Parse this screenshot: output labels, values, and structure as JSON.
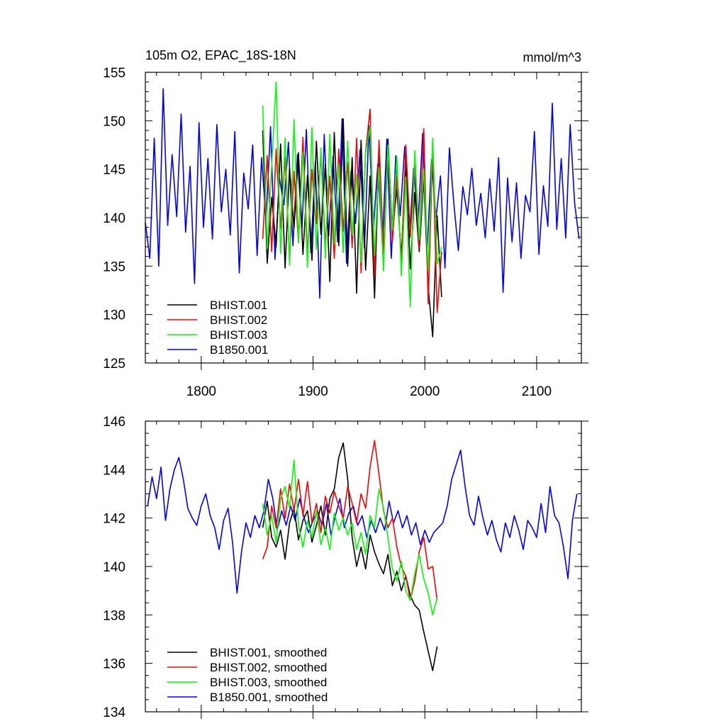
{
  "chart_data": [
    {
      "type": "line",
      "title": "105m O2, EPAC_18S-18N",
      "units": "mmol/m^3",
      "xlim": [
        1750,
        2140
      ],
      "ylim": [
        125,
        155
      ],
      "x_ticks": [
        1800,
        1900,
        2000,
        2100
      ],
      "x_tick_labels": [
        "1800",
        "1900",
        "2000",
        "2100"
      ],
      "y_ticks": [
        125,
        130,
        135,
        140,
        145,
        150,
        155
      ],
      "y_tick_labels": [
        "125",
        "130",
        "135",
        "140",
        "145",
        "150",
        "155"
      ],
      "legend_position": "bottom-left",
      "series": [
        {
          "name": "B1850.001",
          "color": "#0000ff",
          "x": [
            1750,
            1754,
            1758,
            1762,
            1766,
            1770,
            1774,
            1778,
            1782,
            1786,
            1790,
            1794,
            1798,
            1802,
            1806,
            1810,
            1814,
            1818,
            1822,
            1826,
            1830,
            1834,
            1838,
            1842,
            1846,
            1850,
            1854,
            1858,
            1862,
            1866,
            1870,
            1874,
            1878,
            1882,
            1886,
            1890,
            1894,
            1898,
            1902,
            1906,
            1910,
            1914,
            1918,
            1922,
            1926,
            1930,
            1934,
            1938,
            1942,
            1946,
            1950,
            1954,
            1958,
            1962,
            1966,
            1970,
            1974,
            1978,
            1982,
            1986,
            1990,
            1994,
            1998,
            2002,
            2006,
            2010,
            2014,
            2018,
            2022,
            2026,
            2030,
            2034,
            2038,
            2042,
            2046,
            2050,
            2054,
            2058,
            2062,
            2066,
            2070,
            2074,
            2078,
            2082,
            2086,
            2090,
            2094,
            2098,
            2102,
            2106,
            2110,
            2114,
            2118,
            2122,
            2126,
            2130,
            2134,
            2138
          ],
          "values": [
            139.5,
            135.8,
            148.2,
            135.0,
            153.3,
            139.2,
            146.5,
            140.1,
            150.7,
            138.5,
            145.3,
            133.2,
            149.8,
            139.0,
            146.1,
            137.8,
            149.6,
            140.6,
            145.0,
            138.2,
            148.9,
            134.3,
            144.6,
            140.9,
            147.5,
            136.1,
            146.2,
            139.7,
            149.4,
            135.7,
            144.1,
            141.3,
            147.8,
            137.1,
            146.5,
            138.8,
            149.1,
            136.4,
            145.7,
            131.7,
            148.6,
            138.1,
            146.3,
            137.5,
            150.2,
            135.3,
            144.8,
            139.4,
            147.0,
            136.8,
            149.5,
            138.9,
            145.6,
            137.2,
            148.1,
            135.8,
            146.4,
            140.2,
            147.3,
            137.6,
            145.1,
            139.5,
            148.7,
            136.5,
            146.0,
            140.0,
            144.3,
            134.8,
            147.2,
            141.4,
            136.6,
            143.2,
            140.3,
            145.1,
            139.2,
            142.5,
            137.9,
            144.0,
            138.6,
            146.2,
            132.3,
            144.1,
            137.5,
            143.6,
            135.8,
            142.3,
            140.6,
            148.9,
            136.2,
            143.3,
            139.1,
            151.8,
            138.8,
            146.1,
            137.9,
            149.6,
            141.5,
            137.8
          ]
        },
        {
          "name": "BHIST.001",
          "color": "#000000",
          "x": [
            1855,
            1859,
            1863,
            1867,
            1871,
            1875,
            1879,
            1883,
            1887,
            1891,
            1895,
            1899,
            1903,
            1907,
            1911,
            1915,
            1919,
            1923,
            1927,
            1931,
            1935,
            1939,
            1943,
            1947,
            1951,
            1955,
            1959,
            1963,
            1967,
            1971,
            1975,
            1979,
            1983,
            1987,
            1991,
            1995,
            1999,
            2003,
            2007,
            2011,
            2015
          ],
          "values": [
            149.0,
            135.3,
            142.1,
            137.0,
            147.6,
            134.8,
            145.1,
            138.9,
            146.7,
            136.2,
            144.4,
            135.6,
            147.9,
            138.3,
            145.5,
            133.4,
            148.8,
            137.1,
            150.2,
            135.0,
            146.2,
            132.2,
            148.0,
            134.6,
            144.3,
            131.7,
            146.9,
            136.3,
            148.1,
            138.5,
            143.0,
            136.0,
            145.9,
            134.7,
            142.6,
            136.5,
            144.1,
            132.8,
            127.7,
            140.2,
            131.8
          ]
        },
        {
          "name": "BHIST.002",
          "color": "#ff0000",
          "x": [
            1855,
            1859,
            1863,
            1867,
            1871,
            1875,
            1879,
            1883,
            1887,
            1891,
            1895,
            1899,
            1903,
            1907,
            1911,
            1915,
            1919,
            1923,
            1927,
            1931,
            1935,
            1939,
            1943,
            1947,
            1951,
            1955,
            1959,
            1963,
            1967,
            1971,
            1975,
            1979,
            1983,
            1987,
            1991,
            1995,
            1999,
            2003,
            2007,
            2011,
            2015
          ],
          "values": [
            137.8,
            146.4,
            136.5,
            147.1,
            138.9,
            146.2,
            135.6,
            144.8,
            137.4,
            148.3,
            136.1,
            145.0,
            139.4,
            146.5,
            137.2,
            144.3,
            135.8,
            147.1,
            138.6,
            145.7,
            136.9,
            148.2,
            134.3,
            146.8,
            151.2,
            134.0,
            148.0,
            136.4,
            146.7,
            137.5,
            144.3,
            135.1,
            147.5,
            138.0,
            145.9,
            136.8,
            149.2,
            131.1,
            147.2,
            130.2,
            136.5
          ]
        },
        {
          "name": "BHIST.003",
          "color": "#00ff00",
          "x": [
            1855,
            1859,
            1863,
            1867,
            1871,
            1875,
            1879,
            1883,
            1887,
            1891,
            1895,
            1899,
            1903,
            1907,
            1911,
            1915,
            1919,
            1923,
            1927,
            1931,
            1935,
            1939,
            1943,
            1947,
            1951,
            1955,
            1959,
            1963,
            1967,
            1971,
            1975,
            1979,
            1983,
            1987,
            1991,
            1995,
            1999,
            2003,
            2007,
            2011,
            2015
          ],
          "values": [
            151.6,
            136.8,
            145.4,
            154.0,
            136.3,
            148.2,
            135.1,
            150.1,
            137.4,
            146.8,
            134.9,
            149.3,
            136.7,
            147.2,
            135.8,
            148.6,
            137.3,
            145.6,
            136.4,
            147.9,
            138.2,
            144.5,
            135.4,
            146.7,
            149.4,
            136.1,
            145.2,
            134.5,
            147.5,
            138.7,
            146.3,
            134.0,
            144.2,
            130.8,
            146.9,
            137.7,
            145.0,
            134.5,
            148.2,
            135.2,
            137.0
          ]
        }
      ]
    },
    {
      "type": "line",
      "title": "",
      "units": "",
      "xlim": [
        1750,
        2140
      ],
      "ylim": [
        134,
        146
      ],
      "x_ticks": [
        1800,
        1900,
        2000,
        2100
      ],
      "x_tick_labels": [],
      "y_ticks": [
        134,
        136,
        138,
        140,
        142,
        144,
        146
      ],
      "y_tick_labels": [
        "134",
        "136",
        "138",
        "140",
        "142",
        "144",
        "146"
      ],
      "legend_position": "bottom-left",
      "series": [
        {
          "name": "B1850.001, smoothed",
          "color": "#0000ff",
          "x": [
            1752,
            1756,
            1760,
            1764,
            1768,
            1772,
            1776,
            1780,
            1784,
            1788,
            1792,
            1796,
            1800,
            1804,
            1808,
            1812,
            1816,
            1820,
            1824,
            1828,
            1832,
            1836,
            1840,
            1844,
            1848,
            1852,
            1856,
            1860,
            1864,
            1868,
            1872,
            1876,
            1880,
            1884,
            1888,
            1892,
            1896,
            1900,
            1904,
            1908,
            1912,
            1916,
            1920,
            1924,
            1928,
            1932,
            1936,
            1940,
            1944,
            1948,
            1952,
            1956,
            1960,
            1964,
            1968,
            1972,
            1976,
            1980,
            1984,
            1988,
            1992,
            1996,
            2000,
            2004,
            2008,
            2012,
            2016,
            2020,
            2024,
            2028,
            2032,
            2036,
            2040,
            2044,
            2048,
            2052,
            2056,
            2060,
            2064,
            2068,
            2072,
            2076,
            2080,
            2084,
            2088,
            2092,
            2096,
            2100,
            2104,
            2108,
            2112,
            2116,
            2120,
            2124,
            2128,
            2132,
            2136
          ],
          "values": [
            142.5,
            143.7,
            142.8,
            144.1,
            141.9,
            143.2,
            144.0,
            144.5,
            143.6,
            142.4,
            142.0,
            141.7,
            142.5,
            143.0,
            142.1,
            141.6,
            140.7,
            141.9,
            142.4,
            141.0,
            138.9,
            140.6,
            141.8,
            141.2,
            142.1,
            141.6,
            142.3,
            143.6,
            142.8,
            141.5,
            142.3,
            141.7,
            142.5,
            141.9,
            142.8,
            142.0,
            141.4,
            141.9,
            142.3,
            141.7,
            142.6,
            141.3,
            142.1,
            142.8,
            141.6,
            142.2,
            142.5,
            141.7,
            142.1,
            141.2,
            141.9,
            141.4,
            142.0,
            141.5,
            142.7,
            141.8,
            142.3,
            141.6,
            142.1,
            141.3,
            141.8,
            140.9,
            141.5,
            141.0,
            141.4,
            141.6,
            141.8,
            142.5,
            143.6,
            144.2,
            144.8,
            143.3,
            142.1,
            141.7,
            142.9,
            142.0,
            141.3,
            141.9,
            141.1,
            140.6,
            141.8,
            141.2,
            142.1,
            141.5,
            140.7,
            141.9,
            141.6,
            141.2,
            142.6,
            141.4,
            143.3,
            142.1,
            141.8,
            140.8,
            139.5,
            141.9,
            143.0
          ]
        },
        {
          "name": "BHIST.001, smoothed",
          "color": "#000000",
          "x": [
            1855,
            1859,
            1863,
            1867,
            1871,
            1875,
            1879,
            1883,
            1887,
            1891,
            1895,
            1899,
            1903,
            1907,
            1911,
            1915,
            1919,
            1923,
            1927,
            1931,
            1935,
            1939,
            1943,
            1947,
            1951,
            1955,
            1959,
            1963,
            1967,
            1971,
            1975,
            1979,
            1983,
            1987,
            1991,
            1995,
            1999,
            2003,
            2007,
            2011
          ],
          "values": [
            141.6,
            142.7,
            141.2,
            140.8,
            141.5,
            140.3,
            141.8,
            142.4,
            141.1,
            141.9,
            142.3,
            141.0,
            141.7,
            142.5,
            141.3,
            142.8,
            143.2,
            144.5,
            145.1,
            143.6,
            141.2,
            140.0,
            140.8,
            139.9,
            141.3,
            140.6,
            140.1,
            139.7,
            140.5,
            139.2,
            139.8,
            139.0,
            139.6,
            138.8,
            138.4,
            138.2,
            137.3,
            136.5,
            135.7,
            136.7
          ]
        },
        {
          "name": "BHIST.002, smoothed",
          "color": "#ff0000",
          "x": [
            1855,
            1859,
            1863,
            1867,
            1871,
            1875,
            1879,
            1883,
            1887,
            1891,
            1895,
            1899,
            1903,
            1907,
            1911,
            1915,
            1919,
            1923,
            1927,
            1931,
            1935,
            1939,
            1943,
            1947,
            1951,
            1955,
            1959,
            1963,
            1967,
            1971,
            1975,
            1979,
            1983,
            1987,
            1991,
            1995,
            1999,
            2003,
            2007,
            2011
          ],
          "values": [
            140.3,
            140.8,
            142.5,
            141.6,
            143.2,
            142.0,
            143.4,
            142.3,
            143.6,
            142.1,
            143.5,
            141.8,
            142.6,
            141.4,
            142.9,
            142.2,
            143.1,
            142.5,
            142.0,
            143.3,
            142.6,
            141.8,
            143.0,
            142.4,
            144.1,
            145.2,
            143.8,
            142.3,
            141.6,
            142.0,
            140.8,
            140.0,
            139.6,
            138.6,
            139.4,
            140.6,
            141.2,
            139.9,
            140.0,
            138.6
          ]
        },
        {
          "name": "BHIST.003, smoothed",
          "color": "#00ff00",
          "x": [
            1855,
            1859,
            1863,
            1867,
            1871,
            1875,
            1879,
            1883,
            1887,
            1891,
            1895,
            1899,
            1903,
            1907,
            1911,
            1915,
            1919,
            1923,
            1927,
            1931,
            1935,
            1939,
            1943,
            1947,
            1951,
            1955,
            1959,
            1963,
            1967,
            1971,
            1975,
            1979,
            1983,
            1987,
            1991,
            1995,
            1999,
            2003,
            2007,
            2011
          ],
          "values": [
            142.6,
            141.3,
            142.1,
            141.0,
            142.8,
            143.3,
            142.4,
            144.4,
            141.7,
            140.8,
            141.9,
            141.2,
            142.3,
            140.9,
            141.6,
            140.7,
            142.2,
            141.5,
            142.0,
            141.3,
            141.8,
            140.7,
            141.4,
            140.5,
            142.1,
            141.6,
            143.2,
            142.4,
            141.2,
            139.9,
            139.4,
            140.2,
            139.0,
            138.6,
            139.7,
            140.5,
            139.5,
            138.9,
            138.0,
            138.7
          ]
        }
      ]
    }
  ]
}
